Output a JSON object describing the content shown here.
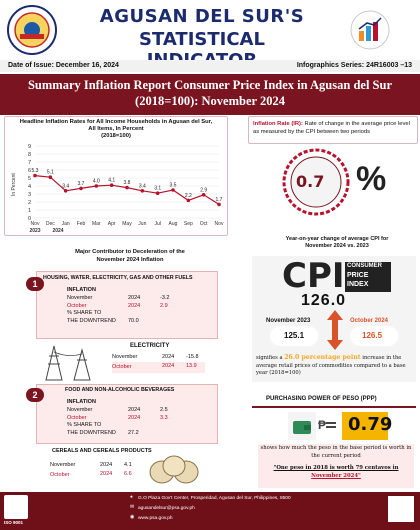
{
  "header": {
    "title_line1": "AGUSAN DEL SUR'S",
    "title_line2": "STATISTICAL INDICATOR"
  },
  "issue": {
    "date": "Date of Issue: December 16, 2024",
    "series": "Infographics Series: 24R16003 –13"
  },
  "banner": {
    "line1": "Summary Inflation Report Consumer Price Index in Agusan del Sur",
    "line2": "(2018=100): November 2024"
  },
  "headline": {
    "title_line1": "Headline Inflation Rates  for All Income Households in Agusan del Sur,",
    "title_line2": "All Items, In Percent",
    "title_line3": "(2018=100)",
    "ylabel": "In Percent"
  },
  "chart_data": {
    "type": "line",
    "categories": [
      "Nov",
      "Dec",
      "Jan",
      "Feb",
      "Mar",
      "Apr",
      "May",
      "Jun",
      "Jul",
      "Aug",
      "Sep",
      "Oct",
      "Nov"
    ],
    "year_labels": [
      "2023",
      "2024"
    ],
    "values": [
      5.3,
      5.1,
      3.4,
      3.7,
      4.0,
      4.1,
      3.8,
      3.4,
      3.1,
      3.5,
      2.2,
      2.9,
      1.7
    ],
    "yticks": [
      "9",
      "8",
      "7",
      "6",
      "5",
      "4",
      "3",
      "2",
      "1",
      "0"
    ],
    "ylim": [
      0,
      9
    ],
    "color": "#b8122c"
  },
  "inflation_def": {
    "term": "Inflation Rate (IR):",
    "text": " Rate of change in the average price level as measured by the CPI between two periods",
    "value": "0.7",
    "symbol": "%"
  },
  "cpi": {
    "title_line1": "Year-on-year change of average CPI for",
    "title_line2": "November 2024 vs. 2023",
    "logo_big": "CPI",
    "logo_sub1": "CONSUMER",
    "logo_sub2": "PRICE",
    "logo_sub3": "INDEX",
    "current": "126.0",
    "left_label": "November 2023",
    "left_value": "125.1",
    "right_label": "October 2024",
    "right_value": "126.5",
    "sig_pre": "signifies a",
    "sig_num": "26.0 percentage point",
    "sig_post": " increase in the average retail prices of commodities compared to a base year (2018=100)"
  },
  "contributors": {
    "title_line1": "Major Contributor  to Deceleration of the",
    "title_line2": "November 2024 Inflation",
    "first": {
      "rank": "1",
      "name": "HOUSING, WATER, ELECTRICITY, GAS AND OTHER FUELS",
      "sub": "INFLATION",
      "rows": [
        [
          "November",
          "2024",
          "-3.2"
        ],
        [
          "October",
          "2024",
          "2.9"
        ]
      ],
      "share_label1": "% SHARE TO",
      "share_label2": "THE DOWNTREND",
      "share_value": "70.0",
      "sub2": "ELECTRICITY",
      "elec_rows": [
        [
          "November",
          "2024",
          "-15.8"
        ],
        [
          "October",
          "2024",
          "13.9"
        ]
      ]
    },
    "second": {
      "rank": "2",
      "name": "FOOD AND NON-ALCOHOLIC BEVERAGES",
      "sub": "INFLATION",
      "rows": [
        [
          "November",
          "2024",
          "2.5"
        ],
        [
          "October",
          "2024",
          "3.3"
        ]
      ],
      "share_label1": "% SHARE TO",
      "share_label2": "THE DOWNTREND",
      "share_value": "27.2",
      "sub2": "CEREALS AND CEREALS PRODUCTS",
      "cer_rows": [
        [
          "November",
          "2024",
          "4.1"
        ],
        [
          "October",
          "2024",
          "6.6"
        ]
      ]
    }
  },
  "ppp": {
    "title": "PURCHASING POWER OF PESO  (PPP)",
    "value": "0.79",
    "peso": "₱",
    "desc": "shows how much the peso in the base period is worth in the current period",
    "quote_line1": "\"One peso in 2018 is worth 79 centavos in",
    "quote_line2": "November 2024\""
  },
  "footer": {
    "address": "G.O Plaza Gov't Center, Prosperidad, Agusan del Sur, Philippines, 8500",
    "email": "agusandelsur@psa.gov.ph",
    "web": "www.psa.gov.ph",
    "iso": "ISO 9001"
  }
}
